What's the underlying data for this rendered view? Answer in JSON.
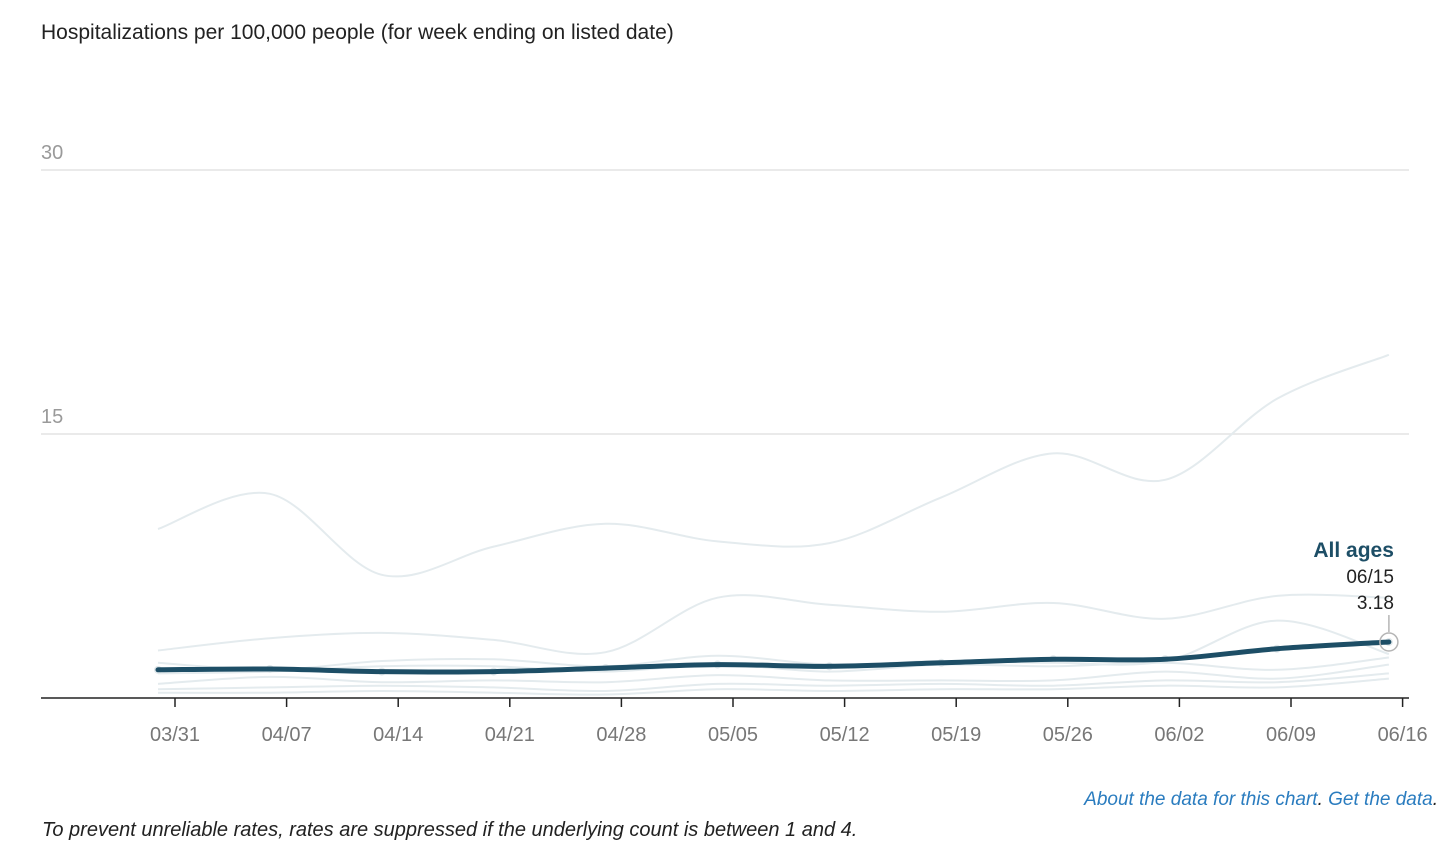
{
  "title": "Hospitalizations per 100,000 people (for week ending on listed date)",
  "chart_data": {
    "type": "line",
    "title": "Hospitalizations per 100,000 people (for week ending on listed date)",
    "xlabel": "",
    "ylabel": "",
    "ylim": [
      0,
      30
    ],
    "yticks": [
      15,
      30
    ],
    "x_tick_labels": [
      "03/31",
      "04/07",
      "04/14",
      "04/21",
      "04/28",
      "05/05",
      "05/12",
      "05/19",
      "05/26",
      "06/02",
      "06/09",
      "06/16"
    ],
    "x": [
      "03/30",
      "04/06",
      "04/13",
      "04/20",
      "04/27",
      "05/04",
      "05/11",
      "05/18",
      "05/25",
      "06/01",
      "06/08",
      "06/15"
    ],
    "highlight_series": "All ages",
    "series": [
      {
        "name": "All ages",
        "highlighted": true,
        "values": [
          1.6,
          1.65,
          1.5,
          1.5,
          1.7,
          1.9,
          1.8,
          2.0,
          2.2,
          2.2,
          2.8,
          3.18
        ]
      },
      {
        "highlighted": false,
        "values": [
          9.6,
          11.6,
          7.0,
          8.6,
          9.9,
          8.9,
          8.8,
          11.4,
          13.9,
          12.4,
          17.0,
          19.5
        ]
      },
      {
        "highlighted": false,
        "values": [
          2.7,
          3.4,
          3.7,
          3.3,
          2.6,
          5.7,
          5.3,
          4.9,
          5.4,
          4.5,
          5.8,
          5.7
        ]
      },
      {
        "highlighted": false,
        "values": [
          2.0,
          1.6,
          2.1,
          2.2,
          1.8,
          2.4,
          1.9,
          2.1,
          2.0,
          2.1,
          4.4,
          2.5
        ]
      },
      {
        "highlighted": false,
        "values": [
          1.4,
          1.5,
          1.8,
          1.8,
          1.5,
          1.9,
          1.5,
          1.9,
          1.8,
          2.0,
          1.6,
          2.3
        ]
      },
      {
        "highlighted": false,
        "values": [
          0.8,
          1.2,
          0.9,
          1.0,
          0.9,
          1.3,
          1.0,
          1.0,
          1.0,
          1.5,
          1.1,
          1.9
        ]
      },
      {
        "highlighted": false,
        "values": [
          0.5,
          0.6,
          0.7,
          0.6,
          0.4,
          0.8,
          0.7,
          0.8,
          0.7,
          1.0,
          0.9,
          1.4
        ]
      },
      {
        "highlighted": false,
        "values": [
          0.3,
          0.3,
          0.4,
          0.3,
          0.2,
          0.5,
          0.4,
          0.5,
          0.5,
          0.7,
          0.6,
          1.1
        ]
      }
    ],
    "tooltip": {
      "label": "All ages",
      "date": "06/15",
      "value": "3.18"
    },
    "grid": true,
    "colors": {
      "highlight": "#1d4e66",
      "other": "#e4ebee",
      "grid": "#e3e3e3",
      "axis": "#222222",
      "tick_label": "#777777",
      "y_tick_label": "#9a9a9a"
    }
  },
  "footer": {
    "about_link": "About the data for this chart",
    "separator": ".",
    "get_data_link": "Get the data",
    "end": ".",
    "note": "To prevent unreliable rates, rates are suppressed if the underlying count is between 1 and 4."
  }
}
